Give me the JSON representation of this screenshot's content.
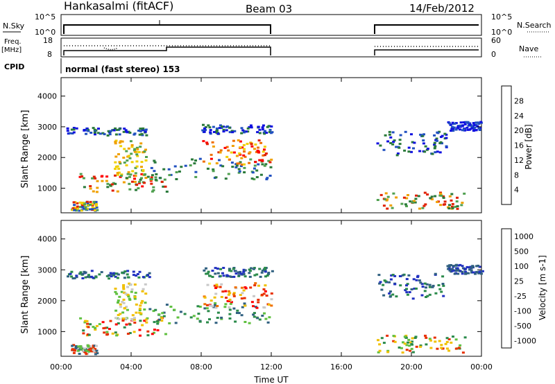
{
  "header": {
    "station": "Hankasalmi (fitACF)",
    "beam": "Beam 03",
    "date": "14/Feb/2012"
  },
  "left_labels": {
    "nsky": "N.Sky",
    "freq": "Freq.",
    "freq_unit": "[MHz]",
    "cpid": "CPID",
    "nsky_ticks": [
      "10^5",
      "10^0"
    ],
    "freq_ticks": [
      "18",
      "8"
    ]
  },
  "right_labels": {
    "nsearch": "N.Search",
    "nave": "Nave",
    "nsearch_ticks": [
      "10^5",
      "10^0"
    ],
    "nave_ticks": [
      "60",
      "0"
    ]
  },
  "cpid_text": "normal (fast stereo) 153",
  "x_axis": {
    "label": "Time UT",
    "ticks": [
      "00:00",
      "04:00",
      "08:00",
      "12:00",
      "16:00",
      "20:00",
      "00:00"
    ]
  },
  "chart_data": [
    {
      "type": "heatmap",
      "ylabel": "Slant Range [km]",
      "xlabel": "Time UT",
      "y_ticks": [
        1000,
        2000,
        3000,
        4000
      ],
      "ylim": [
        200,
        4600
      ],
      "xlim_hours": [
        0,
        24
      ],
      "colorbar": {
        "label": "Power [dB]",
        "ticks": [
          "4",
          "8",
          "12",
          "16",
          "20",
          "24",
          "28"
        ],
        "colors": [
          "#1010e0",
          "#2050c0",
          "#2a7a3a",
          "#50a050",
          "#f0d000",
          "#f0a000",
          "#f07000",
          "#e02000",
          "#ff0000"
        ]
      },
      "data_gaps_hours": [
        [
          12.0,
          18.0
        ]
      ]
    },
    {
      "type": "heatmap",
      "ylabel": "Slant Range [km]",
      "xlabel": "Time UT",
      "y_ticks": [
        1000,
        2000,
        3000,
        4000
      ],
      "ylim": [
        200,
        4600
      ],
      "xlim_hours": [
        0,
        24
      ],
      "colorbar": {
        "label": "Velocity [m s-1]",
        "ticks": [
          "1000",
          "500",
          "100",
          "25",
          "-25",
          "-100",
          "-500",
          "-1000"
        ],
        "colors": [
          "#2030c0",
          "#306080",
          "#2a8a4a",
          "#60c040",
          "#c8c8c8",
          "#f0c000",
          "#f07000",
          "#e83000",
          "#ff0000"
        ]
      },
      "data_gaps_hours": [
        [
          12.0,
          18.0
        ]
      ]
    }
  ]
}
